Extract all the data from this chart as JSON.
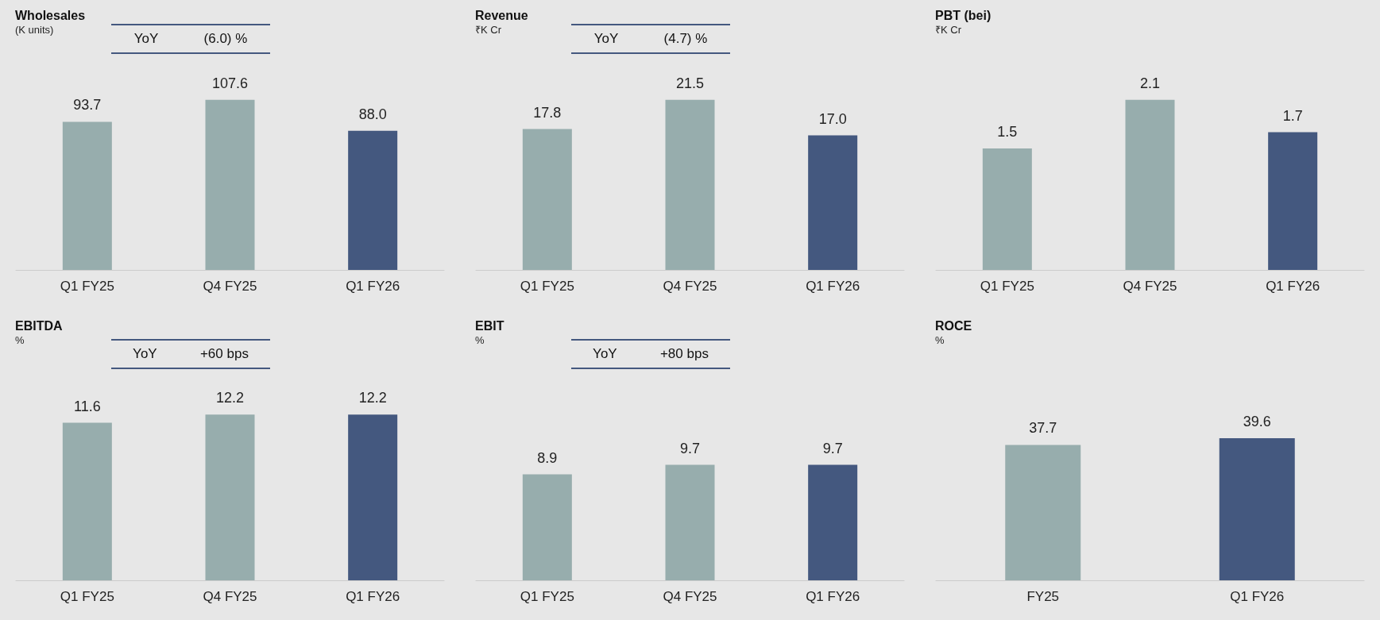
{
  "chart_data": [
    {
      "type": "bar",
      "title": "Wholesales",
      "subtitle": "(K units)",
      "annotations": [
        "YoY",
        "(6.0)  %"
      ],
      "categories": [
        "Q1 FY25",
        "Q4 FY25",
        "Q1 FY26"
      ],
      "values": [
        93.7,
        107.6,
        88.0
      ],
      "value_labels": [
        "93.7",
        "107.6",
        "88.0"
      ],
      "colors": [
        "#97adad",
        "#97adad",
        "#44587f"
      ],
      "tick_labels": "x"
    },
    {
      "type": "bar",
      "title": "Revenue",
      "subtitle": "₹K Cr",
      "annotations": [
        "YoY",
        "(4.7) %"
      ],
      "categories": [
        "Q1 FY25",
        "Q4 FY25",
        "Q1 FY26"
      ],
      "values": [
        17.8,
        21.5,
        17.0
      ],
      "value_labels": [
        "17.8",
        "21.5",
        "17.0"
      ],
      "colors": [
        "#97adad",
        "#97adad",
        "#44587f"
      ],
      "tick_labels": "x"
    },
    {
      "type": "bar",
      "title": "PBT (bei)",
      "subtitle": "₹K Cr",
      "categories": [
        "Q1 FY25",
        "Q4 FY25",
        "Q1 FY26"
      ],
      "values": [
        1.5,
        2.1,
        1.7
      ],
      "value_labels": [
        "1.5",
        "2.1",
        "1.7"
      ],
      "colors": [
        "#97adad",
        "#97adad",
        "#44587f"
      ],
      "tick_labels": "x"
    },
    {
      "type": "bar",
      "title": "EBITDA",
      "subtitle": "%",
      "annotations": [
        "YoY",
        "+60 bps"
      ],
      "categories": [
        "Q1 FY25",
        "Q4 FY25",
        "Q1 FY26"
      ],
      "values": [
        11.6,
        12.2,
        12.2
      ],
      "value_labels": [
        "11.6",
        "12.2",
        "12.2"
      ],
      "colors": [
        "#97adad",
        "#97adad",
        "#44587f"
      ],
      "tick_labels": "x"
    },
    {
      "type": "bar",
      "title": "EBIT",
      "subtitle": "%",
      "annotations": [
        "YoY",
        "+80  bps"
      ],
      "categories": [
        "Q1 FY25",
        "Q4 FY25",
        "Q1 FY26"
      ],
      "values": [
        8.9,
        9.7,
        9.7
      ],
      "value_labels": [
        "8.9",
        "9.7",
        "9.7"
      ],
      "colors": [
        "#97adad",
        "#97adad",
        "#44587f"
      ],
      "tick_labels": "x"
    },
    {
      "type": "bar",
      "title": "ROCE",
      "subtitle": "%",
      "categories": [
        "FY25",
        "Q1 FY26"
      ],
      "values": [
        37.7,
        39.6
      ],
      "value_labels": [
        "37.7",
        "39.6"
      ],
      "colors": [
        "#97adad",
        "#44587f"
      ],
      "tick_labels": "x"
    }
  ]
}
